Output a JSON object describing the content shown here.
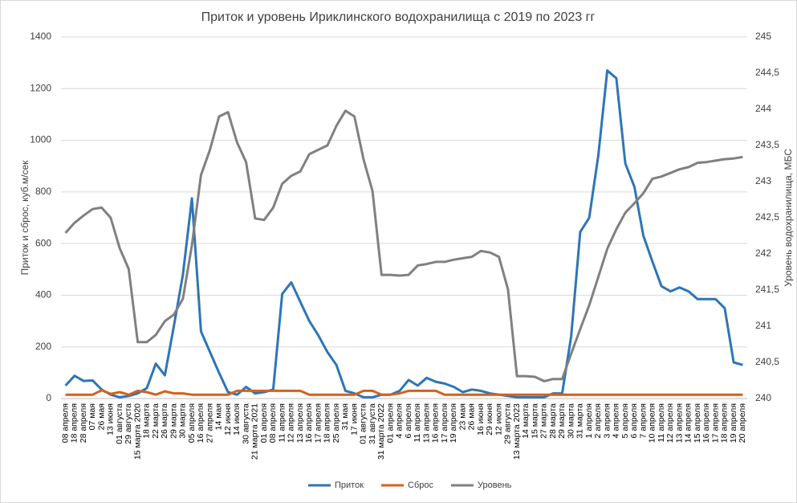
{
  "chart_data": {
    "type": "line",
    "title": "Приток и уровень Ириклинского водохранилища с 2019 по 2023 гг",
    "y_label": "Приток и сброс, куб.м/сек",
    "y2_label": "Уровень водохранилища, МБС",
    "categories": [
      "08 апреля",
      "18 апреля",
      "28 апреля",
      "07 мая",
      "26 мая",
      "13 июня",
      "01 августа",
      "29 августа",
      "15 марта 2020",
      "18 марта",
      "22 марта",
      "26 марта",
      "29 марта",
      "30 марта",
      "05 апреля",
      "16 апреля",
      "27 апреля",
      "14 мая",
      "12 июня",
      "14 июля",
      "30 августа",
      "21 марта 2021",
      "01 апреля",
      "08 апреля",
      "11 апреля",
      "12 апреля",
      "13 апреля",
      "16 апреля",
      "17 апреля",
      "18 апреля",
      "25 апреля",
      "31 мая",
      "17 июня",
      "01 августа",
      "31 августа",
      "31 марта 2022",
      "01 апреля",
      "4 апреля",
      "6 апреля",
      "11 апреля",
      "13 апреля",
      "16 апреля",
      "17 апреля",
      "19 апреля",
      "23 мая",
      "26 мая",
      "16 июня",
      "29 июня",
      "12 июля",
      "29 августа",
      "13 марта 2023",
      "14 марта",
      "15 марта",
      "27 марта",
      "28 марта",
      "29 марта",
      "30 марта",
      "31 марта",
      "1 апреля",
      "2 апреля",
      "3 апреля",
      "4 апреля",
      "5 апреля",
      "6 апреля",
      "7 апреля",
      "10 апреля",
      "11 апреля",
      "12 апреля",
      "13 апреля",
      "14 апреля",
      "15 апреля",
      "16 апреля",
      "17 апреля",
      "18 апреля",
      "19 апреля",
      "20 апреля"
    ],
    "series": [
      {
        "name": "Приток",
        "color": "#2e75b6",
        "values": [
          50,
          88,
          68,
          70,
          35,
          15,
          5,
          10,
          20,
          40,
          135,
          90,
          280,
          480,
          775,
          260,
          180,
          100,
          25,
          15,
          45,
          20,
          25,
          35,
          405,
          450,
          375,
          300,
          245,
          180,
          130,
          30,
          20,
          5,
          5,
          15,
          15,
          30,
          72,
          50,
          80,
          65,
          58,
          45,
          25,
          35,
          30,
          20,
          15,
          10,
          5,
          5,
          5,
          5,
          20,
          20,
          240,
          645,
          700,
          940,
          1270,
          1240,
          910,
          820,
          630,
          530,
          435,
          415,
          430,
          415,
          385,
          385,
          385,
          350,
          140,
          130
        ]
      },
      {
        "name": "Сброс",
        "color": "#d4611c",
        "values": [
          15,
          15,
          15,
          15,
          32,
          18,
          25,
          15,
          30,
          25,
          15,
          28,
          20,
          20,
          15,
          15,
          15,
          15,
          15,
          30,
          30,
          30,
          30,
          30,
          30,
          30,
          30,
          15,
          15,
          15,
          15,
          15,
          15,
          30,
          30,
          15,
          15,
          20,
          30,
          30,
          30,
          30,
          15,
          15,
          15,
          15,
          15,
          15,
          15,
          15,
          15,
          15,
          15,
          15,
          15,
          15,
          15,
          15,
          15,
          15,
          15,
          15,
          15,
          15,
          15,
          15,
          15,
          15,
          15,
          15,
          15,
          15,
          15,
          15,
          15,
          15
        ]
      },
      {
        "name": "Уровень",
        "color": "#808080",
        "axis": "y2",
        "values": [
          242.29,
          242.43,
          242.53,
          242.62,
          242.64,
          242.5,
          242.08,
          241.79,
          240.78,
          240.78,
          240.88,
          241.07,
          241.16,
          241.38,
          242.12,
          243.09,
          243.44,
          243.9,
          243.96,
          243.54,
          243.27,
          242.49,
          242.47,
          242.64,
          242.97,
          243.08,
          243.14,
          243.38,
          243.44,
          243.5,
          243.77,
          243.98,
          243.9,
          243.31,
          242.87,
          241.71,
          241.71,
          241.7,
          241.71,
          241.84,
          241.86,
          241.89,
          241.89,
          241.92,
          241.94,
          241.96,
          242.04,
          242.02,
          241.96,
          241.51,
          240.31,
          240.31,
          240.3,
          240.24,
          240.27,
          240.27,
          240.62,
          240.96,
          241.29,
          241.68,
          242.07,
          242.34,
          242.57,
          242.7,
          242.84,
          243.04,
          243.07,
          243.12,
          243.17,
          243.2,
          243.26,
          243.27,
          243.29,
          243.31,
          243.32,
          243.34
        ]
      }
    ],
    "ylim": [
      0,
      1400
    ],
    "yticks": [
      0,
      200,
      400,
      600,
      800,
      1000,
      1200,
      1400
    ],
    "y2lim": [
      240,
      245
    ],
    "y2ticks": [
      240,
      {
        "value": 240.5,
        "label": "240,5"
      },
      241,
      {
        "value": 241.5,
        "label": "241,5"
      },
      242,
      {
        "value": 242.5,
        "label": "242,5"
      },
      243,
      {
        "value": 243.5,
        "label": "243,5"
      },
      244,
      {
        "value": 244.5,
        "label": "244,5"
      },
      245
    ],
    "grid": true,
    "legend": "bottom"
  }
}
